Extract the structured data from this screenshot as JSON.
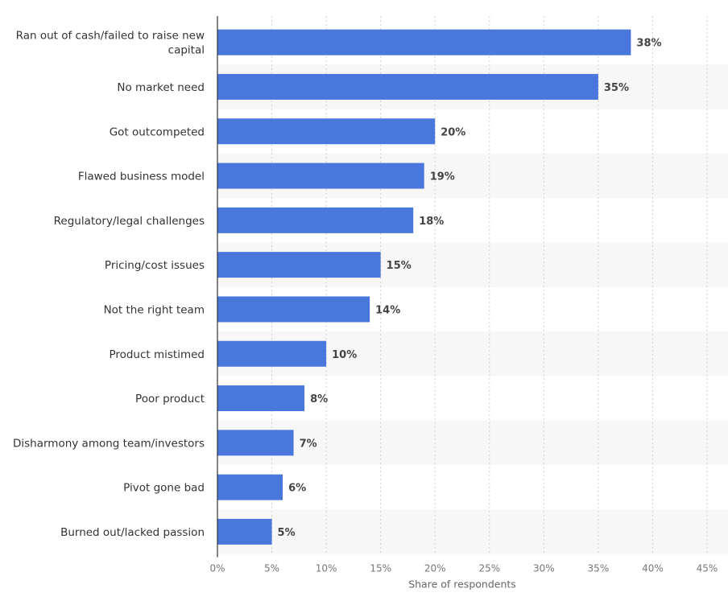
{
  "chart_data": {
    "type": "bar",
    "orientation": "horizontal",
    "categories": [
      "Ran out of cash/failed to raise new capital",
      "No market need",
      "Got outcompeted",
      "Flawed business model",
      "Regulatory/legal challenges",
      "Pricing/cost issues",
      "Not the right team",
      "Product mistimed",
      "Poor product",
      "Disharmony among team/investors",
      "Pivot gone bad",
      "Burned out/lacked passion"
    ],
    "category_lines": [
      [
        "Ran out of cash/failed to raise new",
        "capital"
      ],
      [
        "No market need"
      ],
      [
        "Got outcompeted"
      ],
      [
        "Flawed business model"
      ],
      [
        "Regulatory/legal challenges"
      ],
      [
        "Pricing/cost issues"
      ],
      [
        "Not the right team"
      ],
      [
        "Product mistimed"
      ],
      [
        "Poor product"
      ],
      [
        "Disharmony among team/investors"
      ],
      [
        "Pivot gone bad"
      ],
      [
        "Burned out/lacked passion"
      ]
    ],
    "values": [
      38,
      35,
      20,
      19,
      18,
      15,
      14,
      10,
      8,
      7,
      6,
      5
    ],
    "value_labels": [
      "38%",
      "35%",
      "20%",
      "19%",
      "18%",
      "15%",
      "14%",
      "10%",
      "8%",
      "7%",
      "6%",
      "5%"
    ],
    "xlabel": "Share of respondents",
    "xlim": [
      0,
      45
    ],
    "xticks": [
      0,
      5,
      10,
      15,
      20,
      25,
      30,
      35,
      40,
      45
    ],
    "xtick_labels": [
      "0%",
      "5%",
      "10%",
      "15%",
      "20%",
      "25%",
      "30%",
      "35%",
      "40%",
      "45%"
    ],
    "grid": "vertical dashed",
    "alternating_row_bands": true,
    "colors": {
      "bar": "#4a77db",
      "band": "#f7f7f7",
      "grid": "#d0d0d0",
      "axis": "#333333"
    }
  }
}
